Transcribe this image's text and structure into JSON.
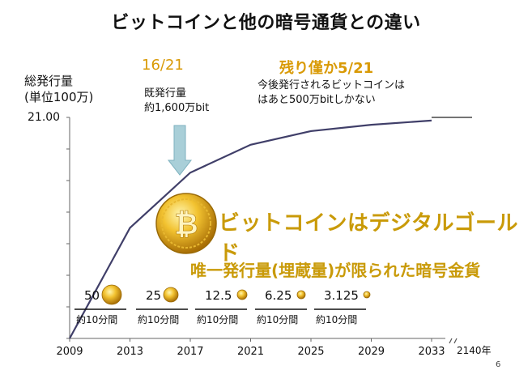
{
  "title": "ビットコインと他の暗号通貨との違い",
  "y_axis_label_line1": "総発行量",
  "y_axis_label_line2": "(単位100万)",
  "fraction_mined": "16/21",
  "fraction_remaining": "残り僅か5/21",
  "mined_note_line1": "既発行量",
  "mined_note_line2": "約1,600万bit",
  "remaining_note_line1": "今後発行されるビットコインは",
  "remaining_note_line2": "はあと500万bitしかない",
  "tagline_main": "ビットコインはデジタルゴールド",
  "tagline_sub": "唯一発行量(埋蔵量)が限られた暗号金貨",
  "page_number": "6",
  "block_rewards": [
    {
      "reward": "50",
      "interval": "約10分間"
    },
    {
      "reward": "25",
      "interval": "約10分間"
    },
    {
      "reward": "12.5",
      "interval": "約10分間"
    },
    {
      "reward": "6.25",
      "interval": "約10分間"
    },
    {
      "reward": "3.125",
      "interval": "約10分間"
    }
  ],
  "end_label": "2140年",
  "colors": {
    "line": "#403f69",
    "accent_gold": "#c99a08",
    "fraction_orange": "#d99a06",
    "arrow_fill": "#a9cfd8"
  },
  "chart_data": {
    "type": "line",
    "title": "ビットコインと他の暗号通貨との違い",
    "ylabel": "総発行量(単位100万)",
    "xlabel": "",
    "ylim": [
      0,
      21
    ],
    "ytick_labels": [
      "21.00"
    ],
    "x_ticks": [
      "2009",
      "2013",
      "2017",
      "2021",
      "2025",
      "2029",
      "2033"
    ],
    "x": [
      2009,
      2013,
      2017,
      2021,
      2025,
      2029,
      2033
    ],
    "series": [
      {
        "values": [
          0,
          10.5,
          15.75,
          18.4,
          19.7,
          20.3,
          20.7
        ]
      }
    ],
    "grid": false
  }
}
